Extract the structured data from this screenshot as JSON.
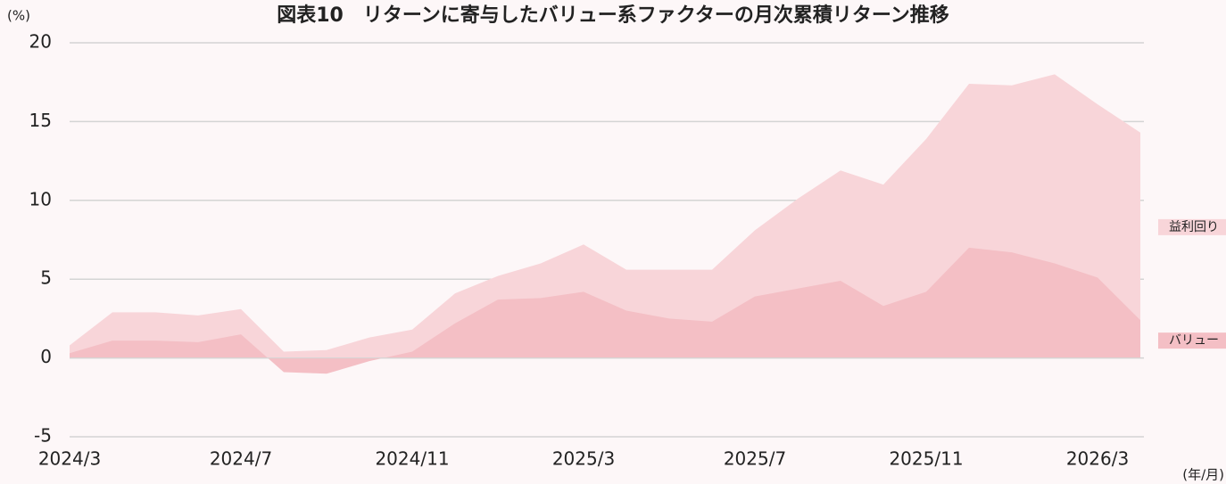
{
  "chart_data": {
    "type": "area",
    "title": "図表10　リターンに寄与したバリュー系ファクターの月次累積リターン推移",
    "y_label": "(%)",
    "x_label": "(年/月)",
    "categories": [
      "2024/3",
      null,
      null,
      null,
      "2024/7",
      null,
      null,
      null,
      "2024/11",
      null,
      null,
      null,
      "2025/3",
      null,
      null,
      null,
      "2025/7",
      null,
      null,
      null,
      "2025/11",
      null,
      null,
      null,
      "2026/3",
      null
    ],
    "series": [
      {
        "name": "益利回り",
        "color": "#f8d5d9",
        "values": [
          0.8,
          2.9,
          2.9,
          2.7,
          3.1,
          0.4,
          0.5,
          1.3,
          1.8,
          4.1,
          5.2,
          6.0,
          7.2,
          5.6,
          5.6,
          5.6,
          8.1,
          10.1,
          11.9,
          11.0,
          13.9,
          17.4,
          17.3,
          18.0,
          16.1,
          14.3
        ]
      },
      {
        "name": "バリュー",
        "color": "#f4bfc5",
        "values": [
          0.3,
          1.1,
          1.1,
          1.0,
          1.5,
          -0.9,
          -1.0,
          -0.2,
          0.4,
          2.2,
          3.7,
          3.8,
          4.2,
          3.0,
          2.5,
          2.3,
          3.9,
          4.4,
          4.9,
          3.3,
          4.2,
          7.0,
          6.7,
          6.0,
          5.1,
          2.4
        ]
      }
    ],
    "ylim": [
      -5,
      20
    ],
    "yticks": [
      -5,
      0,
      5,
      10,
      15,
      20
    ],
    "grid": true
  }
}
